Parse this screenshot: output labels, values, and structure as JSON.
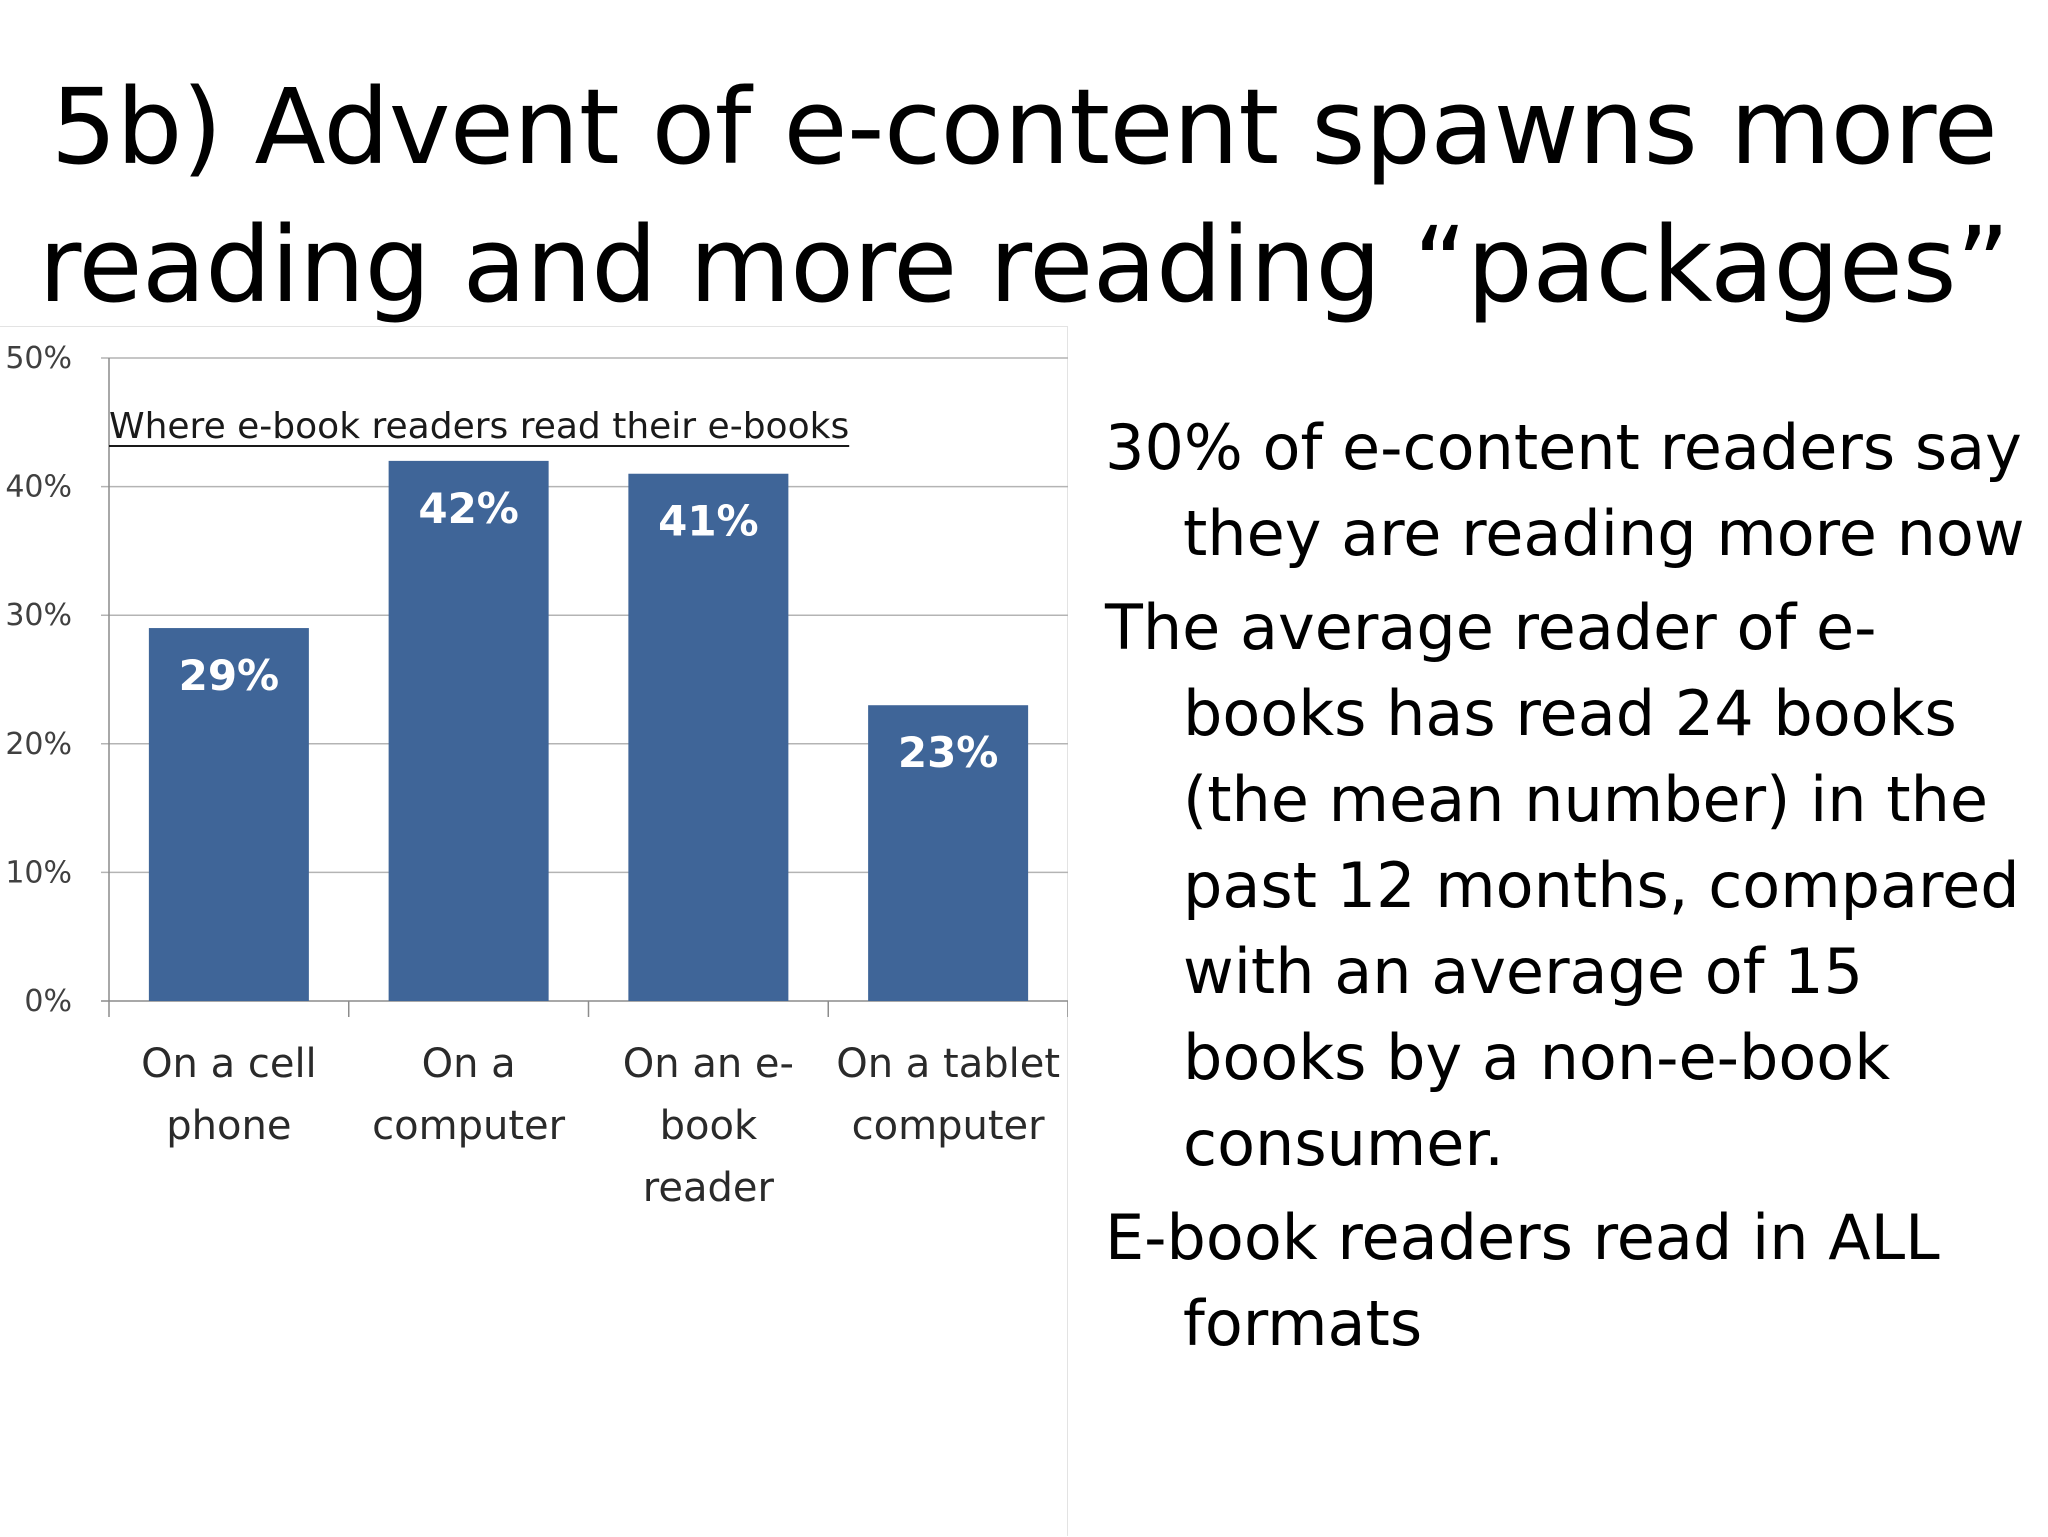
{
  "slide": {
    "title_line1": "5b) Advent of e-content spawns more",
    "title_line2": "reading and more reading “packages”"
  },
  "bullets": [
    "30% of e-content readers say they are reading more now",
    "The average reader of e-books has read 24 books (the mean number) in the past 12 months, compared with an average of 15 books by a non-e-book consumer.",
    "E-book readers read in ALL formats"
  ],
  "chart_data": {
    "type": "bar",
    "title": "Where e-book readers read their e-books",
    "categories": [
      [
        "On a cell",
        "phone"
      ],
      [
        "On a",
        "computer"
      ],
      [
        "On an e-",
        "book",
        "reader"
      ],
      [
        "On a tablet",
        "computer"
      ]
    ],
    "values": [
      29,
      42,
      41,
      23
    ],
    "data_labels": [
      "29%",
      "42%",
      "41%",
      "23%"
    ],
    "ylim": [
      0,
      50
    ],
    "yticks": [
      0,
      10,
      20,
      30,
      40,
      50
    ],
    "ytick_labels": [
      "0%",
      "10%",
      "20%",
      "30%",
      "40%",
      "50%"
    ],
    "grid": true,
    "legend": "none",
    "bar_color": "#3f6598",
    "xlabel": "",
    "ylabel": ""
  }
}
